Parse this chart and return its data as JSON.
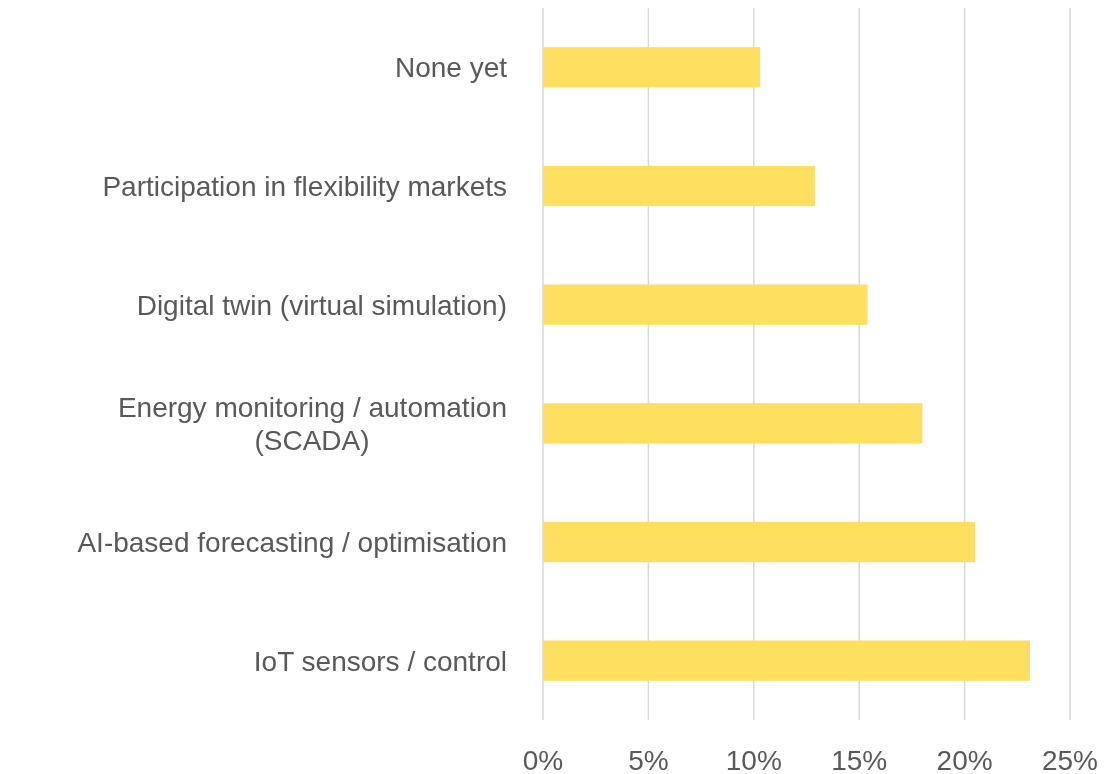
{
  "chart_data": {
    "type": "bar",
    "orientation": "horizontal",
    "categories": [
      "None yet",
      "Participation in flexibility markets",
      "Digital twin (virtual simulation)",
      "Energy monitoring / automation (SCADA)",
      "AI-based forecasting / optimisation",
      "IoT sensors / control"
    ],
    "values": [
      10.3,
      12.9,
      15.4,
      18.0,
      20.5,
      23.1
    ],
    "color": "#ffdf5f",
    "xlim": [
      0,
      25
    ],
    "xticks": [
      {
        "value": 0,
        "label": "0%"
      },
      {
        "value": 5,
        "label": "5%"
      },
      {
        "value": 10,
        "label": "10%"
      },
      {
        "value": 15,
        "label": "15%"
      },
      {
        "value": 20,
        "label": "20%"
      },
      {
        "value": 25,
        "label": "25%"
      }
    ],
    "grid": "x"
  }
}
